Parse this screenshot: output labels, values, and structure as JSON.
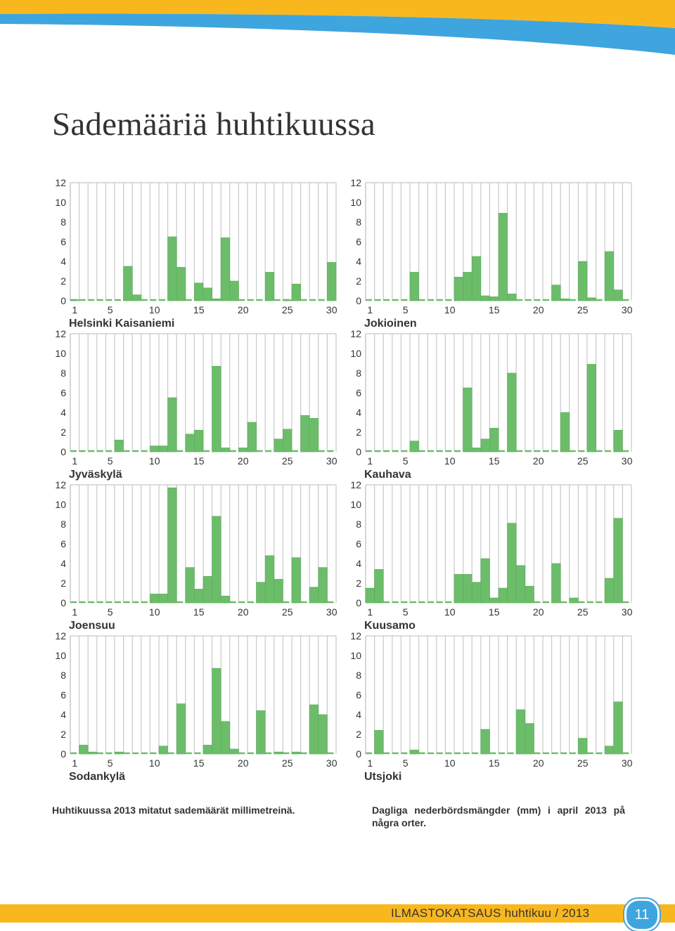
{
  "page": {
    "title": "Sademääriä huhtikuussa",
    "caption_fi": "Huhtikuussa 2013 mitatut sademäärät millimetreinä.",
    "caption_sv": "Dagliga nederbördsmängder (mm) i april 2013 på några orter.",
    "footer_text": "ILMASTOKATSAUS huhtikuu / 2013",
    "page_number": "11"
  },
  "colors": {
    "bar": "#6cbd6a",
    "grid": "#c8c8c8",
    "zero_line": "#6cbd6a",
    "footer": "#f9b71e",
    "badge": "#3ea5de",
    "top_band": "#3ea5de"
  },
  "chart_data": [
    {
      "type": "bar",
      "title": "Helsinki Kaisaniemi",
      "x": [
        1,
        2,
        3,
        4,
        5,
        6,
        7,
        8,
        9,
        10,
        11,
        12,
        13,
        14,
        15,
        16,
        17,
        18,
        19,
        20,
        21,
        22,
        23,
        24,
        25,
        26,
        27,
        28,
        29,
        30
      ],
      "x_tick_labels": [
        "1",
        "5",
        "10",
        "15",
        "20",
        "25",
        "30"
      ],
      "y_tick_labels": [
        "0",
        "2",
        "4",
        "6",
        "8",
        "10",
        "12"
      ],
      "ylim": [
        0,
        12
      ],
      "values": [
        0.1,
        0,
        0,
        0,
        0,
        0,
        3.5,
        0.6,
        0,
        0,
        0,
        6.5,
        3.4,
        0,
        1.8,
        1.3,
        0.2,
        6.4,
        2.0,
        0,
        0,
        0,
        2.9,
        0,
        0.1,
        1.7,
        0,
        0,
        0,
        3.9
      ]
    },
    {
      "type": "bar",
      "title": "Jokioinen",
      "x": [
        1,
        2,
        3,
        4,
        5,
        6,
        7,
        8,
        9,
        10,
        11,
        12,
        13,
        14,
        15,
        16,
        17,
        18,
        19,
        20,
        21,
        22,
        23,
        24,
        25,
        26,
        27,
        28,
        29,
        30
      ],
      "x_tick_labels": [
        "1",
        "5",
        "10",
        "15",
        "20",
        "25",
        "30"
      ],
      "y_tick_labels": [
        "0",
        "2",
        "4",
        "6",
        "8",
        "10",
        "12"
      ],
      "ylim": [
        0,
        12
      ],
      "values": [
        0,
        0,
        0,
        0,
        0,
        2.9,
        0,
        0,
        0,
        0,
        2.4,
        2.9,
        4.5,
        0.5,
        0.4,
        8.9,
        0.7,
        0,
        0,
        0,
        0,
        1.6,
        0.2,
        0,
        4.0,
        0.3,
        0,
        5.0,
        1.1,
        0
      ]
    },
    {
      "type": "bar",
      "title": "Jyväskylä",
      "x": [
        1,
        2,
        3,
        4,
        5,
        6,
        7,
        8,
        9,
        10,
        11,
        12,
        13,
        14,
        15,
        16,
        17,
        18,
        19,
        20,
        21,
        22,
        23,
        24,
        25,
        26,
        27,
        28,
        29,
        30
      ],
      "x_tick_labels": [
        "1",
        "5",
        "10",
        "15",
        "20",
        "25",
        "30"
      ],
      "y_tick_labels": [
        "0",
        "2",
        "4",
        "6",
        "8",
        "10",
        "12"
      ],
      "ylim": [
        0,
        12
      ],
      "values": [
        0,
        0,
        0,
        0,
        0,
        1.2,
        0,
        0,
        0,
        0.6,
        0.6,
        5.5,
        0,
        1.8,
        2.2,
        0,
        8.7,
        0.4,
        0,
        0.4,
        3.0,
        0,
        0,
        1.3,
        2.3,
        0,
        3.7,
        3.4,
        0,
        0
      ]
    },
    {
      "type": "bar",
      "title": "Kauhava",
      "x": [
        1,
        2,
        3,
        4,
        5,
        6,
        7,
        8,
        9,
        10,
        11,
        12,
        13,
        14,
        15,
        16,
        17,
        18,
        19,
        20,
        21,
        22,
        23,
        24,
        25,
        26,
        27,
        28,
        29,
        30
      ],
      "x_tick_labels": [
        "1",
        "5",
        "10",
        "15",
        "20",
        "25",
        "30"
      ],
      "y_tick_labels": [
        "0",
        "2",
        "4",
        "6",
        "8",
        "10",
        "12"
      ],
      "ylim": [
        0,
        12
      ],
      "values": [
        0,
        0,
        0,
        0,
        0,
        1.1,
        0,
        0,
        0,
        0,
        0,
        6.5,
        0.4,
        1.3,
        2.4,
        0,
        8.0,
        0,
        0,
        0,
        0,
        0,
        4.0,
        0,
        0,
        8.9,
        0,
        0,
        2.2,
        0
      ]
    },
    {
      "type": "bar",
      "title": "Joensuu",
      "x": [
        1,
        2,
        3,
        4,
        5,
        6,
        7,
        8,
        9,
        10,
        11,
        12,
        13,
        14,
        15,
        16,
        17,
        18,
        19,
        20,
        21,
        22,
        23,
        24,
        25,
        26,
        27,
        28,
        29,
        30
      ],
      "x_tick_labels": [
        "1",
        "5",
        "10",
        "15",
        "20",
        "25",
        "30"
      ],
      "y_tick_labels": [
        "0",
        "2",
        "4",
        "6",
        "8",
        "10",
        "12"
      ],
      "ylim": [
        0,
        12
      ],
      "values": [
        0,
        0,
        0,
        0,
        0,
        0,
        0,
        0,
        0,
        0.9,
        0.9,
        11.7,
        0,
        3.6,
        1.4,
        2.7,
        8.8,
        0.7,
        0,
        0,
        0,
        2.1,
        4.8,
        2.4,
        0,
        4.6,
        0,
        1.6,
        3.6,
        0
      ]
    },
    {
      "type": "bar",
      "title": "Kuusamo",
      "x": [
        1,
        2,
        3,
        4,
        5,
        6,
        7,
        8,
        9,
        10,
        11,
        12,
        13,
        14,
        15,
        16,
        17,
        18,
        19,
        20,
        21,
        22,
        23,
        24,
        25,
        26,
        27,
        28,
        29,
        30
      ],
      "x_tick_labels": [
        "1",
        "5",
        "10",
        "15",
        "20",
        "25",
        "30"
      ],
      "y_tick_labels": [
        "0",
        "2",
        "4",
        "6",
        "8",
        "10",
        "12"
      ],
      "ylim": [
        0,
        12
      ],
      "values": [
        1.5,
        3.4,
        0,
        0,
        0,
        0,
        0,
        0,
        0,
        0,
        2.9,
        2.9,
        2.1,
        4.5,
        0.5,
        1.5,
        8.1,
        3.8,
        1.7,
        0,
        0,
        4.0,
        0,
        0.5,
        0,
        0,
        0,
        2.5,
        8.6,
        0
      ]
    },
    {
      "type": "bar",
      "title": "Sodankylä",
      "x": [
        1,
        2,
        3,
        4,
        5,
        6,
        7,
        8,
        9,
        10,
        11,
        12,
        13,
        14,
        15,
        16,
        17,
        18,
        19,
        20,
        21,
        22,
        23,
        24,
        25,
        26,
        27,
        28,
        29,
        30
      ],
      "x_tick_labels": [
        "1",
        "5",
        "10",
        "15",
        "20",
        "25",
        "30"
      ],
      "y_tick_labels": [
        "0",
        "2",
        "4",
        "6",
        "8",
        "10",
        "12"
      ],
      "ylim": [
        0,
        12
      ],
      "values": [
        0,
        0.9,
        0.2,
        0,
        0,
        0.2,
        0,
        0,
        0,
        0,
        0.8,
        0,
        5.1,
        0,
        0,
        0.9,
        8.7,
        3.3,
        0.5,
        0,
        0,
        4.4,
        0,
        0.2,
        0,
        0.2,
        0,
        5.0,
        4.0,
        0
      ]
    },
    {
      "type": "bar",
      "title": "Utsjoki",
      "x": [
        1,
        2,
        3,
        4,
        5,
        6,
        7,
        8,
        9,
        10,
        11,
        12,
        13,
        14,
        15,
        16,
        17,
        18,
        19,
        20,
        21,
        22,
        23,
        24,
        25,
        26,
        27,
        28,
        29,
        30
      ],
      "x_tick_labels": [
        "1",
        "5",
        "10",
        "15",
        "20",
        "25",
        "30"
      ],
      "y_tick_labels": [
        "0",
        "2",
        "4",
        "6",
        "8",
        "10",
        "12"
      ],
      "ylim": [
        0,
        12
      ],
      "values": [
        0,
        2.4,
        0,
        0,
        0,
        0.4,
        0,
        0,
        0,
        0,
        0,
        0,
        0,
        2.5,
        0,
        0,
        0,
        4.5,
        3.1,
        0,
        0,
        0,
        0,
        0,
        1.6,
        0,
        0,
        0.8,
        5.3,
        0
      ]
    }
  ]
}
